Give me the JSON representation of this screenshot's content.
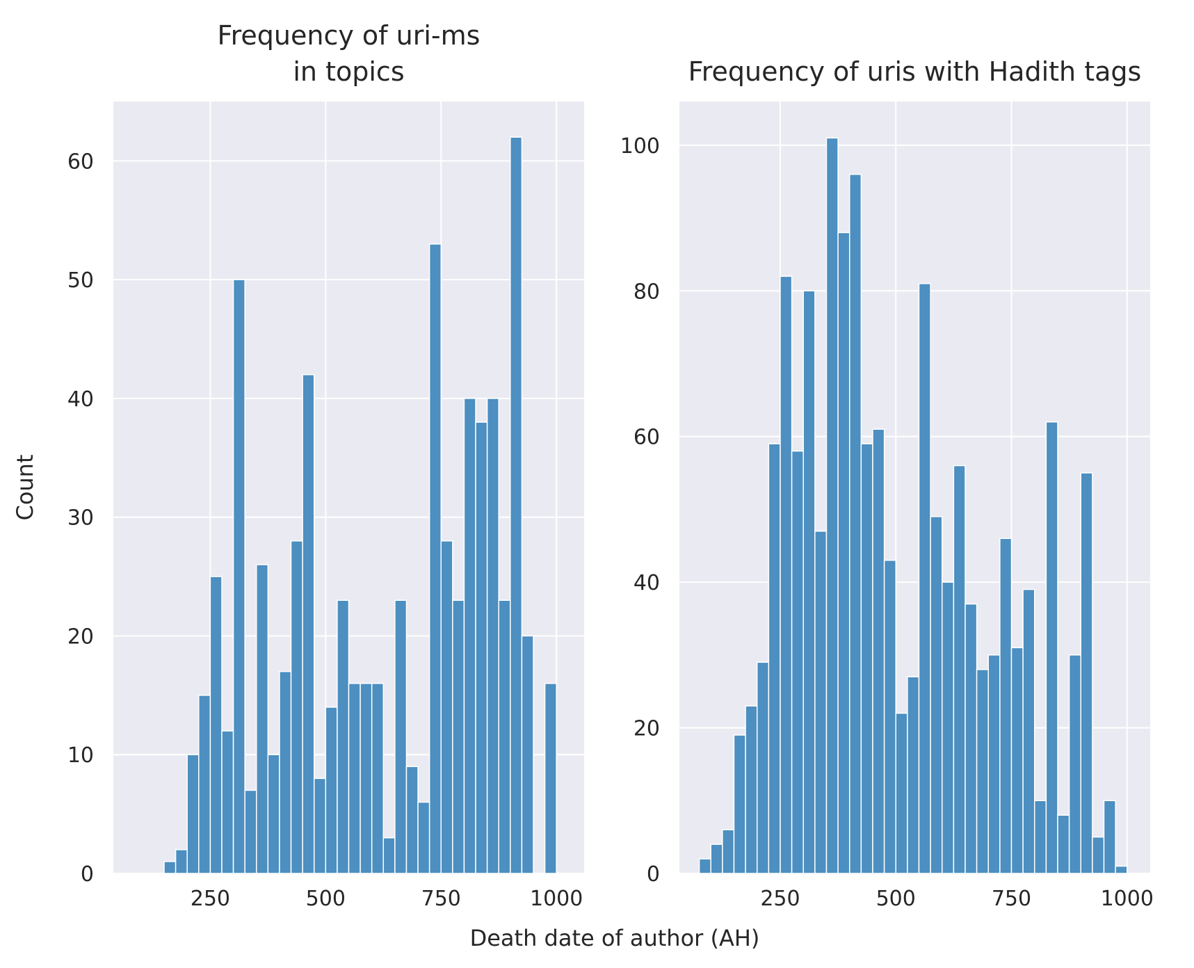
{
  "chart_data": [
    {
      "type": "bar",
      "title_lines": [
        "Frequency of uri-ms",
        "in topics"
      ],
      "ylabel": "Count",
      "xlim": [
        40,
        1060
      ],
      "ylim": [
        0,
        65
      ],
      "xticks": [
        250,
        500,
        750,
        1000
      ],
      "yticks": [
        0,
        10,
        20,
        30,
        40,
        50,
        60
      ],
      "xtick_labels": [
        "250",
        "500",
        "750",
        "1000"
      ],
      "ytick_labels": [
        "0",
        "10",
        "20",
        "30",
        "40",
        "50",
        "60"
      ],
      "grid": true,
      "bins": [
        {
          "x0": 150,
          "x1": 175,
          "value": 1
        },
        {
          "x0": 175,
          "x1": 200,
          "value": 2
        },
        {
          "x0": 200,
          "x1": 225,
          "value": 10
        },
        {
          "x0": 225,
          "x1": 250,
          "value": 15
        },
        {
          "x0": 250,
          "x1": 275,
          "value": 25
        },
        {
          "x0": 275,
          "x1": 300,
          "value": 12
        },
        {
          "x0": 300,
          "x1": 325,
          "value": 50
        },
        {
          "x0": 325,
          "x1": 350,
          "value": 7
        },
        {
          "x0": 350,
          "x1": 375,
          "value": 26
        },
        {
          "x0": 375,
          "x1": 400,
          "value": 10
        },
        {
          "x0": 400,
          "x1": 425,
          "value": 17
        },
        {
          "x0": 425,
          "x1": 450,
          "value": 28
        },
        {
          "x0": 450,
          "x1": 475,
          "value": 42
        },
        {
          "x0": 475,
          "x1": 500,
          "value": 8
        },
        {
          "x0": 500,
          "x1": 525,
          "value": 14
        },
        {
          "x0": 525,
          "x1": 550,
          "value": 23
        },
        {
          "x0": 550,
          "x1": 575,
          "value": 16
        },
        {
          "x0": 575,
          "x1": 600,
          "value": 16
        },
        {
          "x0": 600,
          "x1": 625,
          "value": 16
        },
        {
          "x0": 625,
          "x1": 650,
          "value": 3
        },
        {
          "x0": 650,
          "x1": 675,
          "value": 23
        },
        {
          "x0": 675,
          "x1": 700,
          "value": 9
        },
        {
          "x0": 700,
          "x1": 725,
          "value": 6
        },
        {
          "x0": 725,
          "x1": 750,
          "value": 53
        },
        {
          "x0": 750,
          "x1": 775,
          "value": 28
        },
        {
          "x0": 775,
          "x1": 800,
          "value": 23
        },
        {
          "x0": 800,
          "x1": 825,
          "value": 40
        },
        {
          "x0": 825,
          "x1": 850,
          "value": 38
        },
        {
          "x0": 850,
          "x1": 875,
          "value": 40
        },
        {
          "x0": 875,
          "x1": 900,
          "value": 23
        },
        {
          "x0": 900,
          "x1": 925,
          "value": 62
        },
        {
          "x0": 925,
          "x1": 950,
          "value": 20
        },
        {
          "x0": 975,
          "x1": 1000,
          "value": 16
        }
      ]
    },
    {
      "type": "bar",
      "title_lines": [
        "Frequency of uris with Hadith tags"
      ],
      "ylabel": "",
      "xlim": [
        32,
        1050
      ],
      "ylim": [
        0,
        106
      ],
      "xticks": [
        250,
        500,
        750,
        1000
      ],
      "yticks": [
        0,
        20,
        40,
        60,
        80,
        100
      ],
      "xtick_labels": [
        "250",
        "500",
        "750",
        "1000"
      ],
      "ytick_labels": [
        "0",
        "20",
        "40",
        "60",
        "80",
        "100"
      ],
      "grid": true,
      "bins": [
        {
          "x0": 75,
          "x1": 100,
          "value": 2
        },
        {
          "x0": 100,
          "x1": 125,
          "value": 4
        },
        {
          "x0": 125,
          "x1": 150,
          "value": 6
        },
        {
          "x0": 150,
          "x1": 175,
          "value": 19
        },
        {
          "x0": 175,
          "x1": 200,
          "value": 23
        },
        {
          "x0": 200,
          "x1": 225,
          "value": 29
        },
        {
          "x0": 225,
          "x1": 250,
          "value": 59
        },
        {
          "x0": 250,
          "x1": 275,
          "value": 82
        },
        {
          "x0": 275,
          "x1": 300,
          "value": 58
        },
        {
          "x0": 300,
          "x1": 325,
          "value": 80
        },
        {
          "x0": 325,
          "x1": 350,
          "value": 47
        },
        {
          "x0": 350,
          "x1": 375,
          "value": 101
        },
        {
          "x0": 375,
          "x1": 400,
          "value": 88
        },
        {
          "x0": 400,
          "x1": 425,
          "value": 96
        },
        {
          "x0": 425,
          "x1": 450,
          "value": 59
        },
        {
          "x0": 450,
          "x1": 475,
          "value": 61
        },
        {
          "x0": 475,
          "x1": 500,
          "value": 43
        },
        {
          "x0": 500,
          "x1": 525,
          "value": 22
        },
        {
          "x0": 525,
          "x1": 550,
          "value": 27
        },
        {
          "x0": 550,
          "x1": 575,
          "value": 81
        },
        {
          "x0": 575,
          "x1": 600,
          "value": 49
        },
        {
          "x0": 600,
          "x1": 625,
          "value": 40
        },
        {
          "x0": 625,
          "x1": 650,
          "value": 56
        },
        {
          "x0": 650,
          "x1": 675,
          "value": 37
        },
        {
          "x0": 675,
          "x1": 700,
          "value": 28
        },
        {
          "x0": 700,
          "x1": 725,
          "value": 30
        },
        {
          "x0": 725,
          "x1": 750,
          "value": 46
        },
        {
          "x0": 750,
          "x1": 775,
          "value": 31
        },
        {
          "x0": 775,
          "x1": 800,
          "value": 39
        },
        {
          "x0": 800,
          "x1": 825,
          "value": 10
        },
        {
          "x0": 825,
          "x1": 850,
          "value": 62
        },
        {
          "x0": 850,
          "x1": 875,
          "value": 8
        },
        {
          "x0": 875,
          "x1": 900,
          "value": 30
        },
        {
          "x0": 900,
          "x1": 925,
          "value": 55
        },
        {
          "x0": 925,
          "x1": 950,
          "value": 5
        },
        {
          "x0": 950,
          "x1": 975,
          "value": 10
        },
        {
          "x0": 975,
          "x1": 1000,
          "value": 1
        }
      ]
    }
  ],
  "figure": {
    "shared_xlabel": "Death date of author (AH)",
    "colors": {
      "bar_fill": "#4c8fc0",
      "bar_edge": "#ffffff",
      "axes_bg": "#eaeaf2",
      "grid": "#ffffff",
      "text": "#262626"
    }
  }
}
